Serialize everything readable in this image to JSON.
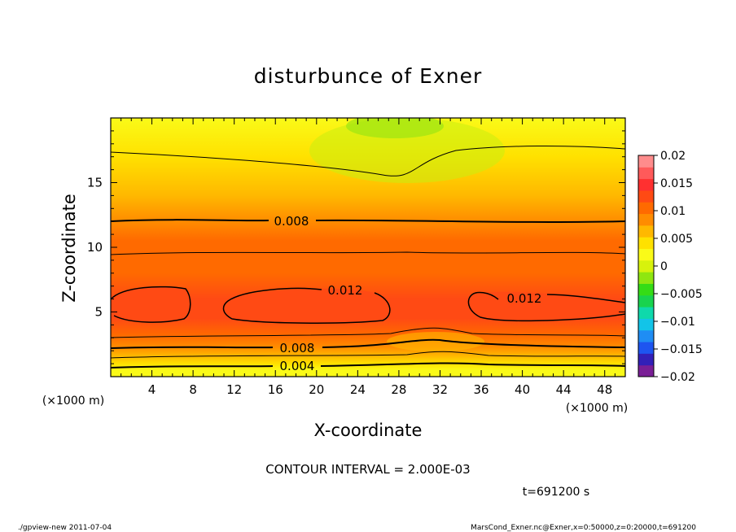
{
  "chart_data": {
    "type": "heatmap",
    "title": "disturbunce of Exner",
    "xlabel": "X-coordinate",
    "ylabel": "Z-coordinate",
    "x_unit_left": "(×1000 m)",
    "x_unit_right": "(×1000 m)",
    "xlim": [
      0,
      50
    ],
    "ylim": [
      0,
      20
    ],
    "x_ticks": [
      4,
      8,
      12,
      16,
      20,
      24,
      28,
      32,
      36,
      40,
      44,
      48
    ],
    "y_ticks": [
      5,
      10,
      15
    ],
    "colorbar": {
      "ticks": [
        0.02,
        0.015,
        0.01,
        0.005,
        0,
        -0.005,
        -0.01,
        -0.015,
        -0.02
      ],
      "tick_labels": [
        "0.02",
        "0.015",
        "0.01",
        "0.005",
        "0",
        "−0.005",
        "−0.01",
        "−0.015",
        "−0.02"
      ],
      "range": [
        -0.02,
        0.02
      ],
      "colors": [
        "#7a1f96",
        "#3320b8",
        "#1e55f0",
        "#1f8df4",
        "#12c4e8",
        "#0fd9ab",
        "#19d34e",
        "#35dc16",
        "#8fe610",
        "#d7f20c",
        "#fafa18",
        "#ffe100",
        "#ffb800",
        "#ff8c00",
        "#ff6a00",
        "#ff4a14",
        "#ff3030",
        "#ff5a5a",
        "#ff8c8c"
      ]
    },
    "z_levels": [
      {
        "z": 0.5,
        "value": 0.002
      },
      {
        "z": 1.0,
        "value": 0.004
      },
      {
        "z": 1.6,
        "value": 0.006
      },
      {
        "z": 2.3,
        "value": 0.008
      },
      {
        "z": 3.2,
        "value": 0.01
      },
      {
        "z": 4.5,
        "value": 0.0125
      },
      {
        "z": 6.0,
        "value": 0.0128
      },
      {
        "z": 8.0,
        "value": 0.0115
      },
      {
        "z": 10.5,
        "value": 0.0095
      },
      {
        "z": 12.0,
        "value": 0.008
      },
      {
        "z": 14.0,
        "value": 0.0065
      },
      {
        "z": 17.0,
        "value": 0.004
      },
      {
        "z": 20.0,
        "value": 0.002
      }
    ],
    "contour_labels": [
      "0.008",
      "0.012",
      "0.012",
      "0.008",
      "0.004"
    ],
    "contour_interval": "CONTOUR INTERVAL = 2.000E-03",
    "time_label": "t=691200 s"
  },
  "footer": {
    "left": "./gpview-new  2011-07-04",
    "right": "MarsCond_Exner.nc@Exner,x=0:50000,z=0:20000,t=691200"
  }
}
